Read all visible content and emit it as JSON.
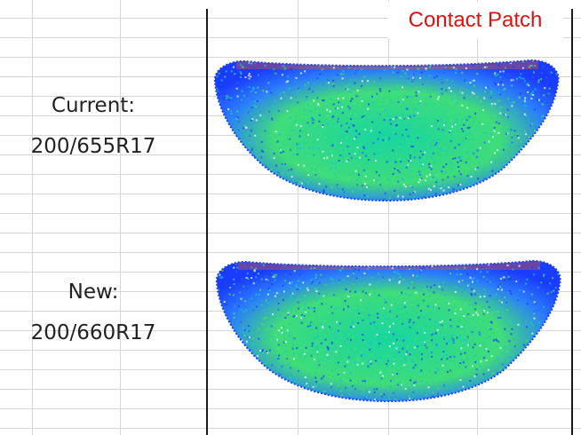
{
  "title": "Contact Patch",
  "rows": [
    {
      "label_line1": "Current:",
      "label_line2": "200/655R17"
    },
    {
      "label_line1": "New:",
      "label_line2": "200/660R17"
    }
  ],
  "colors": {
    "title": "#e01010",
    "grid": "#d6d6d6",
    "divider": "#1a1a1a",
    "heat_low": "#1a3cff",
    "heat_mid": "#17d6a0",
    "heat_high": "#ff5a00"
  }
}
